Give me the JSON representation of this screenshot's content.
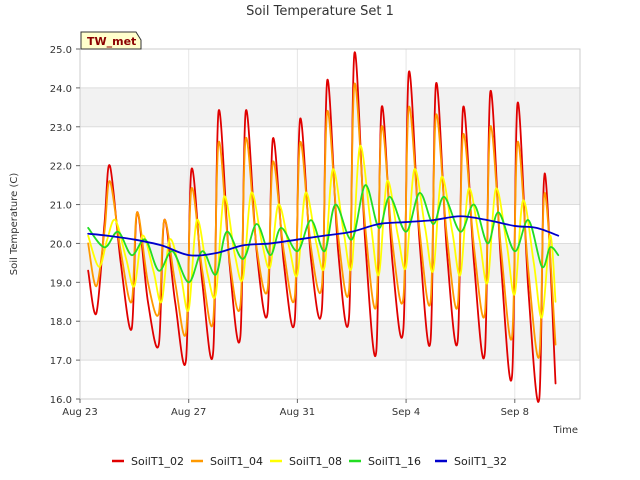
{
  "chart_data": {
    "type": "line",
    "title": "Soil Temperature Set 1",
    "xlabel": "Time",
    "ylabel": "Soil Temperature (C)",
    "ylim": [
      16.0,
      25.0
    ],
    "y_ticks": [
      "16.0",
      "17.0",
      "18.0",
      "19.0",
      "20.0",
      "21.0",
      "22.0",
      "23.0",
      "24.0",
      "25.0"
    ],
    "x_range_days": [
      0,
      18.4
    ],
    "x_ticks": [
      {
        "day": 0,
        "label": "Aug 23"
      },
      {
        "day": 4,
        "label": "Aug 27"
      },
      {
        "day": 8,
        "label": "Aug 31"
      },
      {
        "day": 12,
        "label": "Sep 4"
      },
      {
        "day": 16,
        "label": "Sep 8"
      }
    ],
    "grid": true,
    "banded_background": true,
    "legend_position": "bottom",
    "station_tag": "TW_met",
    "series": [
      {
        "name": "SoilT1_02",
        "color": "#e00000",
        "x": [
          0.3,
          0.6,
          0.9,
          1.1,
          1.5,
          1.9,
          2.1,
          2.5,
          2.9,
          3.1,
          3.5,
          3.9,
          4.1,
          4.5,
          4.9,
          5.1,
          5.5,
          5.9,
          6.1,
          6.5,
          6.9,
          7.1,
          7.5,
          7.9,
          8.1,
          8.5,
          8.9,
          9.1,
          9.5,
          9.9,
          10.1,
          10.5,
          10.9,
          11.1,
          11.5,
          11.9,
          12.1,
          12.5,
          12.9,
          13.1,
          13.5,
          13.9,
          14.1,
          14.5,
          14.9,
          15.1,
          15.5,
          15.9,
          16.1,
          16.5,
          16.9,
          17.1,
          17.5
        ],
        "y": [
          19.3,
          18.2,
          20.5,
          22.0,
          19.5,
          17.8,
          20.8,
          18.5,
          17.4,
          20.6,
          18.5,
          17.0,
          21.9,
          19.0,
          17.2,
          23.4,
          19.5,
          17.6,
          23.4,
          19.8,
          18.2,
          22.7,
          19.5,
          18.0,
          23.2,
          19.6,
          18.3,
          24.2,
          19.8,
          18.1,
          24.9,
          20.0,
          17.2,
          23.5,
          19.5,
          17.8,
          24.4,
          20.0,
          17.5,
          24.1,
          19.8,
          17.5,
          23.5,
          19.5,
          17.2,
          23.9,
          19.4,
          16.6,
          23.6,
          18.8,
          16.0,
          21.8,
          16.4
        ]
      },
      {
        "name": "SoilT1_04",
        "color": "#ff9900",
        "x": [
          0.3,
          0.6,
          0.9,
          1.1,
          1.5,
          1.9,
          2.1,
          2.5,
          2.9,
          3.1,
          3.5,
          3.9,
          4.1,
          4.5,
          4.9,
          5.1,
          5.5,
          5.9,
          6.1,
          6.5,
          6.9,
          7.1,
          7.5,
          7.9,
          8.1,
          8.5,
          8.9,
          9.1,
          9.5,
          9.9,
          10.1,
          10.5,
          10.9,
          11.1,
          11.5,
          11.9,
          12.1,
          12.5,
          12.9,
          13.1,
          13.5,
          13.9,
          14.1,
          14.5,
          14.9,
          15.1,
          15.5,
          15.9,
          16.1,
          16.5,
          16.9,
          17.1,
          17.5
        ],
        "y": [
          20.0,
          18.9,
          20.3,
          21.6,
          19.8,
          18.5,
          20.8,
          19.0,
          18.2,
          20.6,
          19.0,
          17.7,
          21.4,
          19.3,
          18.0,
          22.6,
          19.6,
          18.4,
          22.7,
          19.9,
          18.8,
          22.1,
          19.8,
          18.6,
          22.6,
          19.9,
          18.9,
          23.4,
          20.2,
          18.8,
          24.1,
          20.4,
          18.4,
          23.0,
          20.0,
          18.6,
          23.5,
          20.3,
          18.5,
          23.3,
          20.2,
          18.4,
          22.8,
          19.9,
          18.2,
          23.0,
          19.8,
          17.6,
          22.6,
          19.3,
          17.1,
          21.3,
          17.4
        ]
      },
      {
        "name": "SoilT1_08",
        "color": "#ffff00",
        "x": [
          0.3,
          0.7,
          1.0,
          1.3,
          1.7,
          2.0,
          2.3,
          2.7,
          3.0,
          3.3,
          3.7,
          4.0,
          4.3,
          4.7,
          5.0,
          5.3,
          5.7,
          6.0,
          6.3,
          6.7,
          7.0,
          7.3,
          7.7,
          8.0,
          8.3,
          8.7,
          9.0,
          9.3,
          9.7,
          10.0,
          10.3,
          10.7,
          11.0,
          11.3,
          11.7,
          12.0,
          12.3,
          12.7,
          13.0,
          13.3,
          13.7,
          14.0,
          14.3,
          14.7,
          15.0,
          15.3,
          15.7,
          16.0,
          16.3,
          16.7,
          17.0,
          17.3,
          17.5
        ],
        "y": [
          20.2,
          19.4,
          20.1,
          20.6,
          19.6,
          18.9,
          20.2,
          19.3,
          18.5,
          20.1,
          19.2,
          18.3,
          20.6,
          19.2,
          18.7,
          21.2,
          19.7,
          19.1,
          21.3,
          20.0,
          19.4,
          21.0,
          19.9,
          19.2,
          21.3,
          20.0,
          19.4,
          21.9,
          20.3,
          19.4,
          22.5,
          20.5,
          19.2,
          21.6,
          20.2,
          19.4,
          21.9,
          20.4,
          19.3,
          21.7,
          20.3,
          19.2,
          21.4,
          20.1,
          19.0,
          21.4,
          20.0,
          18.7,
          21.1,
          19.5,
          18.1,
          20.2,
          18.5
        ]
      },
      {
        "name": "SoilT1_16",
        "color": "#22dd22",
        "x": [
          0.3,
          0.9,
          1.4,
          1.9,
          2.4,
          2.9,
          3.4,
          4.0,
          4.5,
          5.0,
          5.4,
          6.0,
          6.5,
          7.0,
          7.4,
          8.0,
          8.5,
          9.0,
          9.4,
          10.0,
          10.5,
          11.0,
          11.4,
          12.0,
          12.5,
          13.0,
          13.4,
          14.0,
          14.5,
          15.0,
          15.4,
          16.0,
          16.5,
          17.0,
          17.3,
          17.6
        ],
        "y": [
          20.4,
          19.9,
          20.3,
          19.7,
          20.1,
          19.3,
          19.8,
          19.0,
          19.8,
          19.2,
          20.3,
          19.6,
          20.5,
          19.7,
          20.4,
          19.8,
          20.6,
          19.8,
          21.0,
          20.1,
          21.5,
          20.4,
          21.2,
          20.3,
          21.3,
          20.5,
          21.2,
          20.3,
          21.0,
          20.0,
          20.8,
          19.8,
          20.6,
          19.4,
          19.9,
          19.7
        ]
      },
      {
        "name": "SoilT1_32",
        "color": "#0000cc",
        "x": [
          0.3,
          1.0,
          2.0,
          3.0,
          4.0,
          5.0,
          6.0,
          7.0,
          8.0,
          9.0,
          10.0,
          11.0,
          12.0,
          13.0,
          14.0,
          15.0,
          16.0,
          16.8,
          17.6
        ],
        "y": [
          20.25,
          20.2,
          20.1,
          19.95,
          19.7,
          19.75,
          19.95,
          20.0,
          20.1,
          20.2,
          20.3,
          20.5,
          20.55,
          20.6,
          20.7,
          20.6,
          20.45,
          20.4,
          20.2
        ]
      }
    ]
  }
}
